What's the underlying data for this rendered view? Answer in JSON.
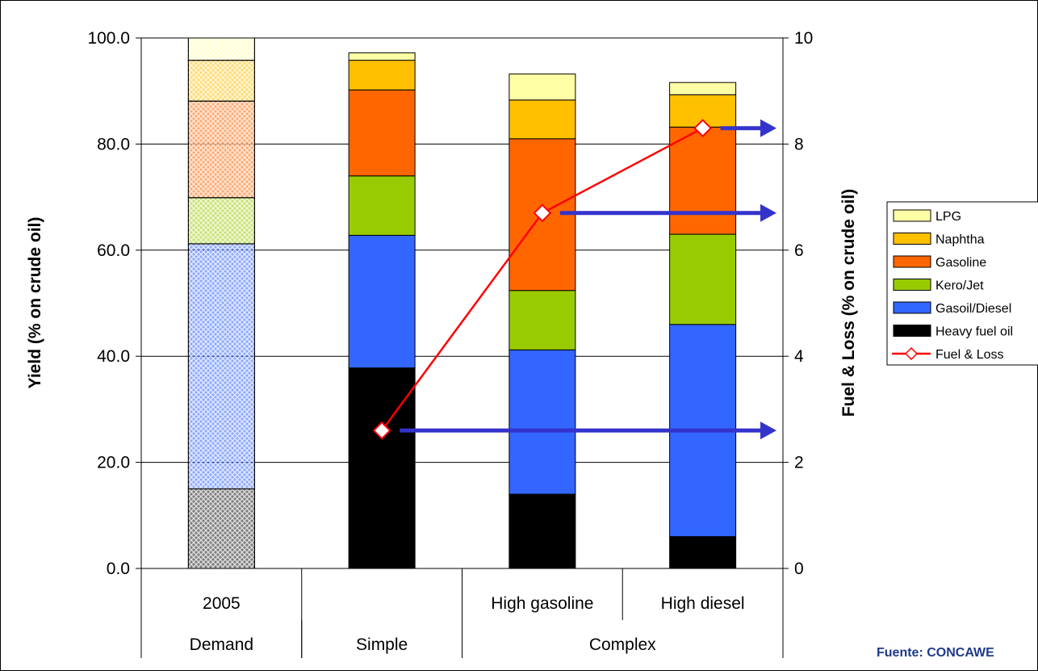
{
  "colors": {
    "lpg": "#ffffa6",
    "naphtha": "#ffc000",
    "gasoline": "#ff6600",
    "kero_jet": "#99cc00",
    "gasoil_diesel": "#3366ff",
    "heavy_fuel_oil": "#000000",
    "fuel_loss_line": "#ff0000",
    "arrow": "#3333cc"
  },
  "source_note": "Fuente: CONCAWE",
  "chart_data": {
    "type": "bar",
    "stacked": true,
    "ylabel": "Yield (% on crude oil)",
    "y2label": "Fuel & Loss (% on crude oil)",
    "ylim": [
      0,
      100
    ],
    "y2lim": [
      0,
      10
    ],
    "yticks": [
      "0.0",
      "20.0",
      "40.0",
      "60.0",
      "80.0",
      "100.0"
    ],
    "y2ticks": [
      "0",
      "2",
      "4",
      "6",
      "8",
      "10"
    ],
    "grid": true,
    "legend_position": "right",
    "categories": [
      "2005",
      "",
      "High gasoline",
      "High diesel"
    ],
    "groups": [
      {
        "label": "Demand",
        "span": 1
      },
      {
        "label": "Simple",
        "span": 1
      },
      {
        "label": "Complex",
        "span": 2
      }
    ],
    "series": [
      {
        "name": "Heavy fuel oil",
        "key": "heavy_fuel_oil",
        "values": [
          15.0,
          37.8,
          14.0,
          6.0
        ]
      },
      {
        "name": "Gasoil/Diesel",
        "key": "gasoil_diesel",
        "values": [
          46.2,
          25.0,
          27.2,
          40.0
        ]
      },
      {
        "name": "Kero/Jet",
        "key": "kero_jet",
        "values": [
          8.7,
          11.2,
          11.2,
          17.0
        ]
      },
      {
        "name": "Gasoline",
        "key": "gasoline",
        "values": [
          18.2,
          16.2,
          28.6,
          20.2
        ]
      },
      {
        "name": "Naphtha",
        "key": "naphtha",
        "values": [
          7.7,
          5.6,
          7.3,
          6.1
        ]
      },
      {
        "name": "LPG",
        "key": "lpg",
        "values": [
          4.2,
          1.4,
          4.9,
          2.3
        ]
      }
    ],
    "hatched_categories": [
      "2005"
    ],
    "line_series": {
      "name": "Fuel & Loss",
      "key": "fuel_loss_line",
      "axis": "right",
      "values": [
        null,
        2.6,
        6.7,
        8.3
      ]
    },
    "legend": [
      "LPG",
      "Naphtha",
      "Gasoline",
      "Kero/Jet",
      "Gasoil/Diesel",
      "Heavy fuel oil",
      "Fuel & Loss"
    ]
  }
}
